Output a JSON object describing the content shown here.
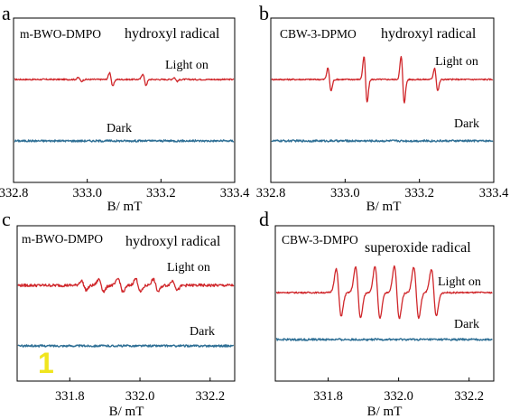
{
  "overlay_mark": "1",
  "colors": {
    "light_on": "#d0272b",
    "dark": "#2e6f95",
    "overlay": "#f0e51e"
  },
  "chart_data": [
    {
      "id": "a",
      "type": "line",
      "panel_letter": "a",
      "sample_label": "m-BWO-DMPO",
      "radical_label": "hydroxyl radical",
      "xlabel": "B/ mT",
      "xlim": [
        332.8,
        333.4
      ],
      "xticks": [
        332.8,
        333.0,
        333.2,
        333.4
      ],
      "xtick_labels": [
        "332.8",
        "333.0",
        "333.2",
        "333.4"
      ],
      "grid": false,
      "series": [
        {
          "name": "Light on",
          "kind": "light",
          "peaks": [
            {
              "x": 332.98,
              "amp": 0.25
            },
            {
              "x": 333.065,
              "amp": 0.9
            },
            {
              "x": 333.155,
              "amp": 0.75
            },
            {
              "x": 333.24,
              "amp": 0.25
            }
          ]
        },
        {
          "name": "Dark",
          "kind": "dark",
          "peaks": []
        }
      ]
    },
    {
      "id": "b",
      "type": "line",
      "panel_letter": "b",
      "sample_label": "CBW-3-DPMO",
      "radical_label": "hydroxyl radical",
      "xlabel": "B/ mT",
      "xlim": [
        332.8,
        333.4
      ],
      "xticks": [
        332.8,
        333.0,
        333.2,
        333.4
      ],
      "xtick_labels": [
        "332.8",
        "333.0",
        "333.2",
        "333.4"
      ],
      "grid": false,
      "series": [
        {
          "name": "Light on",
          "kind": "light",
          "peaks": [
            {
              "x": 332.958,
              "amp": 1.0
            },
            {
              "x": 333.055,
              "amp": 2.0
            },
            {
              "x": 333.155,
              "amp": 2.0
            },
            {
              "x": 333.245,
              "amp": 1.0
            }
          ]
        },
        {
          "name": "Dark",
          "kind": "dark",
          "peaks": []
        }
      ]
    },
    {
      "id": "c",
      "type": "line",
      "panel_letter": "c",
      "sample_label": "m-BWO-DMPO",
      "radical_label": "hydroxyl radical",
      "xlabel": "B/ mT",
      "xlim": [
        331.65,
        332.27
      ],
      "xticks": [
        331.8,
        332.0,
        332.2
      ],
      "xtick_labels": [
        "331.8",
        "332.0",
        "332.2"
      ],
      "grid": false,
      "series": [
        {
          "name": "Light on",
          "kind": "light",
          "peaks": [
            {
              "x": 331.84,
              "amp": 0.45
            },
            {
              "x": 331.89,
              "amp": 0.6
            },
            {
              "x": 331.945,
              "amp": 0.65
            },
            {
              "x": 331.995,
              "amp": 0.65
            },
            {
              "x": 332.045,
              "amp": 0.6
            },
            {
              "x": 332.1,
              "amp": 0.45
            }
          ]
        },
        {
          "name": "Dark",
          "kind": "dark",
          "peaks": []
        }
      ]
    },
    {
      "id": "d",
      "type": "line",
      "panel_letter": "d",
      "sample_label": "CBW-3-DMPO",
      "radical_label": "superoxide radical",
      "xlabel": "B/ mT",
      "xlim": [
        331.65,
        332.27
      ],
      "xticks": [
        331.8,
        332.0,
        332.2
      ],
      "xtick_labels": [
        "331.8",
        "332.0",
        "332.2"
      ],
      "grid": false,
      "series": [
        {
          "name": "Light on",
          "kind": "light",
          "peaks": [
            {
              "x": 331.83,
              "amp": 1.75
            },
            {
              "x": 331.885,
              "amp": 1.9
            },
            {
              "x": 331.94,
              "amp": 1.95
            },
            {
              "x": 331.995,
              "amp": 1.95
            },
            {
              "x": 332.05,
              "amp": 1.9
            },
            {
              "x": 332.1,
              "amp": 1.75
            }
          ]
        },
        {
          "name": "Dark",
          "kind": "dark",
          "peaks": []
        }
      ]
    }
  ]
}
